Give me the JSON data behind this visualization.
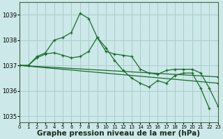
{
  "background_color": "#cce8e8",
  "grid_color": "#aacccc",
  "line_color": "#1a6b2a",
  "title": "Graphe pression niveau de la mer (hPa)",
  "ylim": [
    1034.75,
    1039.5
  ],
  "xlim": [
    0,
    23
  ],
  "yticks": [
    1035,
    1036,
    1037,
    1038,
    1039
  ],
  "xlabel_fontsize": 7.5,
  "xtick_fontsize": 5.0,
  "ytick_fontsize": 6.0,
  "series": [
    {
      "x": [
        0,
        1,
        2,
        3,
        4,
        5,
        6,
        7,
        8,
        9,
        10,
        11,
        12,
        13,
        14,
        15,
        16,
        17,
        18,
        19,
        20,
        21,
        22
      ],
      "y": [
        1037.0,
        1037.0,
        1037.35,
        1037.5,
        1038.0,
        1038.1,
        1038.3,
        1039.05,
        1038.85,
        1038.1,
        1037.7,
        1037.2,
        1036.8,
        1036.5,
        1036.3,
        1036.15,
        1036.4,
        1036.3,
        1036.6,
        1036.7,
        1036.7,
        1036.1,
        1035.3
      ]
    },
    {
      "x": [
        0,
        1,
        2,
        3,
        4,
        5,
        6,
        7,
        8,
        9,
        10,
        11,
        12,
        13,
        14,
        15,
        16,
        17,
        18,
        19,
        20,
        21,
        22,
        23
      ],
      "y": [
        1037.0,
        1037.0,
        1037.3,
        1037.45,
        1037.5,
        1037.4,
        1037.3,
        1037.35,
        1037.55,
        1038.1,
        1037.55,
        1037.45,
        1037.4,
        1037.35,
        1036.85,
        1036.7,
        1036.65,
        1036.8,
        1036.85,
        1036.85,
        1036.85,
        1036.7,
        1036.1,
        1035.4
      ]
    },
    {
      "x": [
        0,
        23
      ],
      "y": [
        1037.0,
        1036.55
      ]
    },
    {
      "x": [
        0,
        23
      ],
      "y": [
        1037.0,
        1036.3
      ]
    }
  ]
}
